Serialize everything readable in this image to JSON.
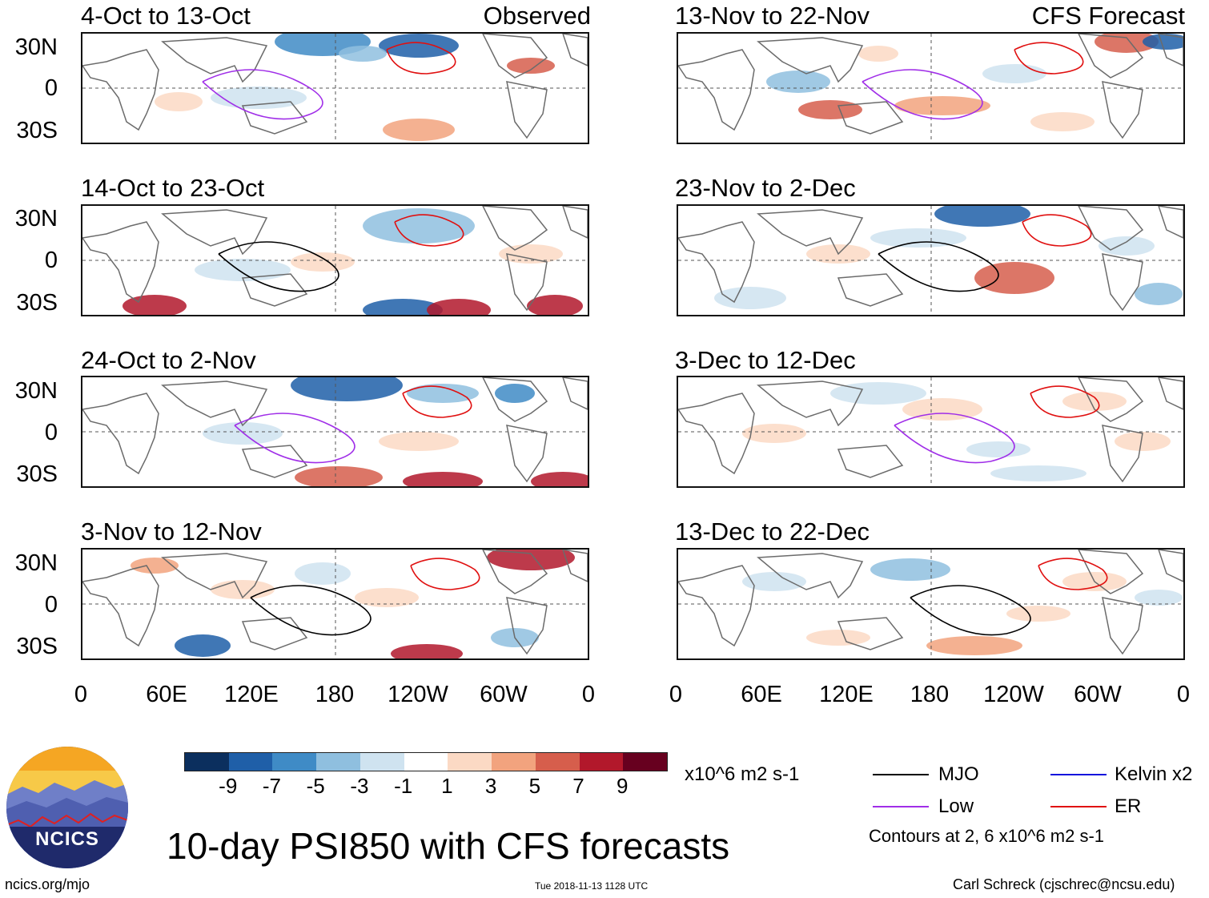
{
  "title": "10-day PSI850 with CFS forecasts",
  "footer": {
    "left": "ncics.org/mjo",
    "center": "Tue 2018-11-13 1128 UTC",
    "right": "Carl Schreck (cjschrec@ncsu.edu)"
  },
  "logo_text": "NCICS",
  "column_labels": {
    "left": "Observed",
    "right": "CFS Forecast"
  },
  "panels_left": [
    {
      "title": "4-Oct to 13-Oct"
    },
    {
      "title": "14-Oct to 23-Oct"
    },
    {
      "title": "24-Oct to 2-Nov"
    },
    {
      "title": "3-Nov to 12-Nov"
    }
  ],
  "panels_right": [
    {
      "title": "13-Nov to 22-Nov"
    },
    {
      "title": "23-Nov to 2-Dec"
    },
    {
      "title": "3-Dec to 12-Dec"
    },
    {
      "title": "13-Dec to 22-Dec"
    }
  ],
  "y_labels": [
    "30N",
    "0",
    "30S"
  ],
  "x_labels": [
    "0",
    "60E",
    "120E",
    "180",
    "120W",
    "60W",
    "0"
  ],
  "colorbar": {
    "unit": "x10^6 m2 s-1",
    "ticks": [
      "-9",
      "-7",
      "-5",
      "-3",
      "-1",
      "1",
      "3",
      "5",
      "7",
      "9"
    ],
    "colors": [
      "#0b2f5e",
      "#1f5fa8",
      "#3f8bc6",
      "#8fbfdf",
      "#cfe3f0",
      "#ffffff",
      "#fbd9c4",
      "#f2a37e",
      "#d65e4c",
      "#b2182b",
      "#67001f"
    ]
  },
  "legend": {
    "items": [
      {
        "label": "MJO",
        "color": "#000000"
      },
      {
        "label": "Kelvin x2",
        "color": "#1010dd"
      },
      {
        "label": "Low",
        "color": "#a02ee8"
      },
      {
        "label": "ER",
        "color": "#e01010"
      }
    ],
    "note": "Contours at 2, 6 x10^6 m2 s-1"
  }
}
